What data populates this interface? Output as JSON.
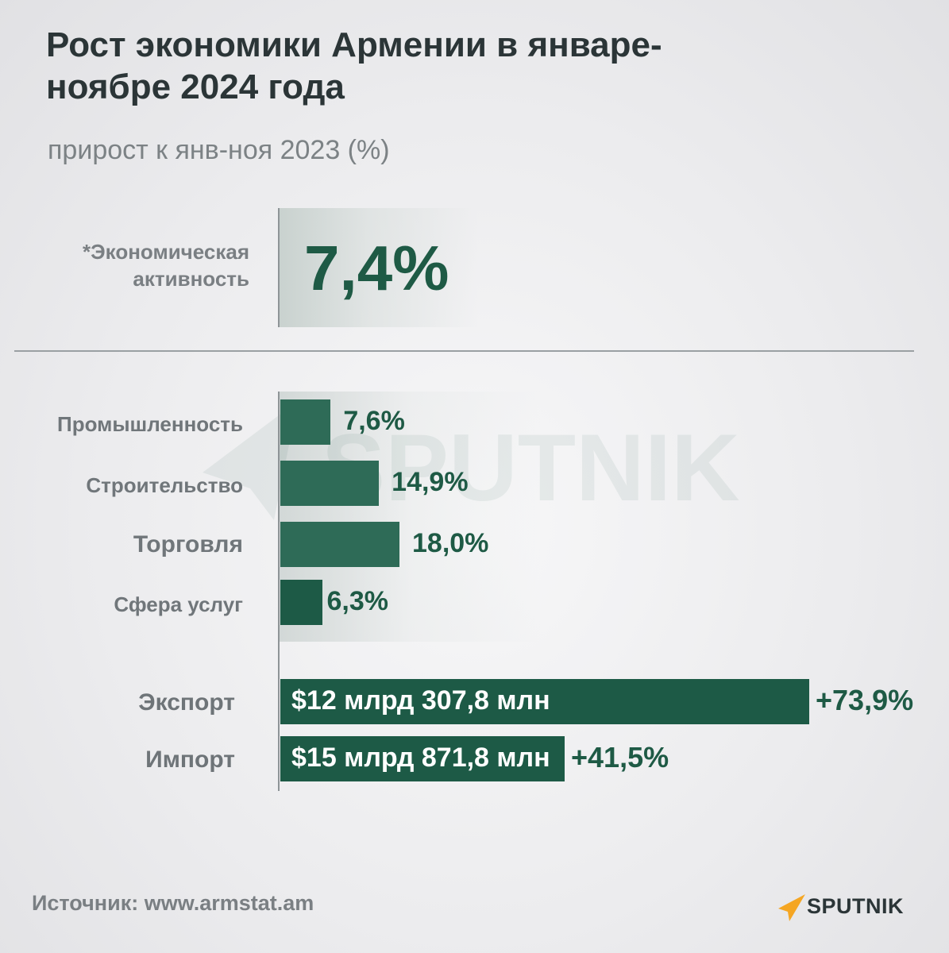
{
  "title": "Рост экономики Армении в январе-ноябре 2024 года",
  "subtitle": "прирост к янв-ноя 2023 (%)",
  "kpi": {
    "label": "*Экономическая активность",
    "value": "7,4%"
  },
  "chart_data": {
    "type": "bar",
    "orientation": "horizontal",
    "categories": [
      "Промышленность",
      "Строительство",
      "Торговля",
      "Сфера услуг"
    ],
    "values": [
      7.6,
      14.9,
      18.0,
      6.3
    ],
    "value_labels": [
      "7,6%",
      "14,9%",
      "18,0%",
      "6,3%"
    ],
    "title": "",
    "xlabel": "",
    "ylabel": ""
  },
  "trade": {
    "categories": [
      "Экспорт",
      "Импорт"
    ],
    "values_musd": [
      12307.8,
      15871.8
    ],
    "amount_labels": [
      "$12 млрд 307,8 млн",
      "$15 млрд 871,8 млн"
    ],
    "growth": [
      73.9,
      41.5
    ],
    "growth_labels": [
      "+73,9%",
      "+41,5%"
    ]
  },
  "source": "Источник: www.armstat.am",
  "brand": {
    "name": "SPUTNIK",
    "watermark": "SPUTNIK",
    "logo_color": "#f5a623",
    "bar_color": "#1d5a46"
  }
}
